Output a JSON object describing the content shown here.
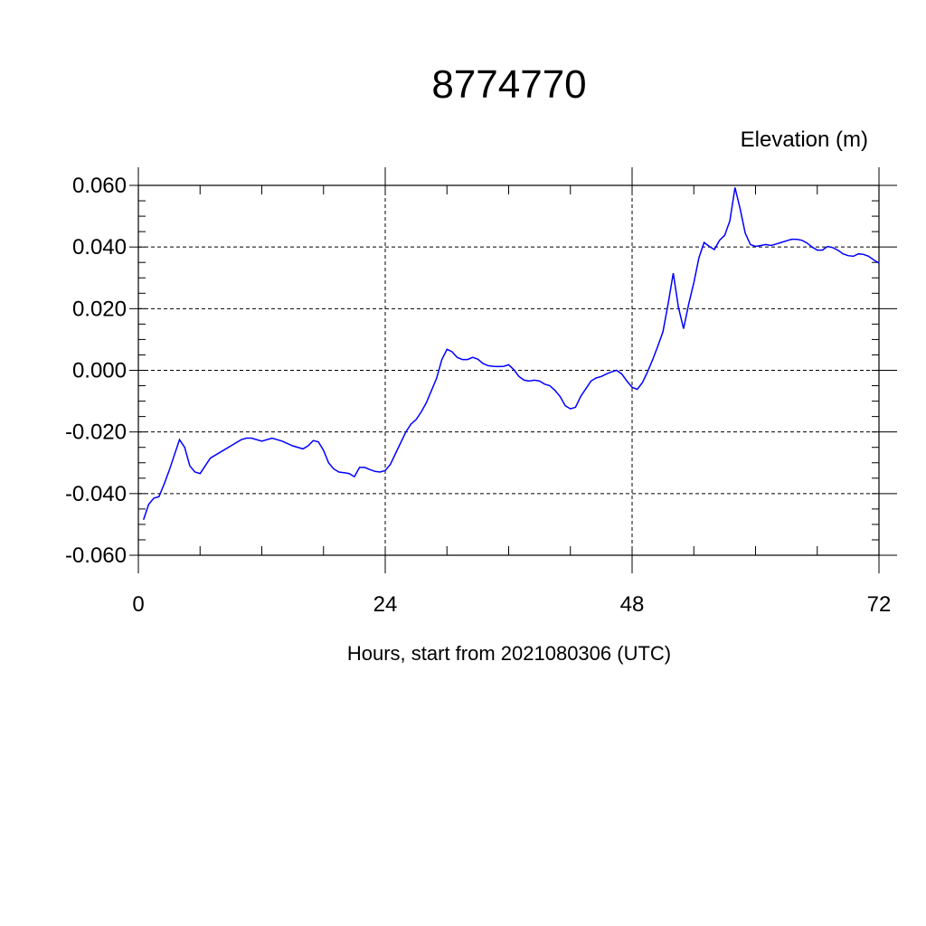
{
  "chart_data": {
    "type": "line",
    "title": "8774770",
    "ylabel": "Elevation (m)",
    "xlabel": "Hours, start from 2021080306 (UTC)",
    "xlim": [
      0,
      72
    ],
    "ylim": [
      -0.06,
      0.06
    ],
    "xticks": [
      0,
      24,
      48,
      72
    ],
    "xtick_labels": [
      "0",
      "24",
      "48",
      "72"
    ],
    "yticks": [
      0.06,
      0.04,
      0.02,
      0.0,
      -0.02,
      -0.04,
      -0.06
    ],
    "ytick_labels": [
      "0.060",
      "0.040",
      "0.020",
      "0.000",
      "-0.020",
      "-0.040",
      "-0.060"
    ],
    "grid": true,
    "line_color": "#0000ff",
    "series": [
      {
        "x": [
          0.5,
          1,
          1.5,
          2,
          2.5,
          3,
          3.5,
          4,
          4.5,
          5,
          5.5,
          6,
          6.5,
          7,
          8,
          9,
          10,
          10.5,
          11,
          12,
          13,
          14,
          15,
          16,
          16.5,
          17,
          17.5,
          18,
          18.5,
          19,
          19.5,
          20,
          20.5,
          21,
          21.5,
          22,
          22.5,
          23,
          23.5,
          24,
          24.5,
          25,
          26,
          26.5,
          27,
          27.5,
          28,
          28.5,
          29,
          29.5,
          30,
          30.5,
          31,
          31.5,
          32,
          32.5,
          33,
          33.5,
          34,
          34.5,
          35,
          35.5,
          36,
          36.5,
          37,
          37.5,
          38,
          38.5,
          39,
          39.5,
          40,
          40.5,
          41,
          41.5,
          42,
          42.5,
          43,
          43.5,
          44,
          44.5,
          45,
          45.5,
          46,
          46.5,
          47,
          47.5,
          48,
          48.5,
          49,
          49.5,
          50,
          50.5,
          51,
          51.5,
          52,
          52.5,
          53,
          53.5,
          54,
          54.5,
          55,
          55.5,
          56,
          56.5,
          57,
          57.5,
          58,
          58.5,
          59,
          59.5,
          60,
          60.5,
          61,
          61.5,
          62,
          62.5,
          63,
          63.5,
          64,
          64.5,
          65,
          65.5,
          66,
          66.5,
          67,
          67.5,
          68,
          68.5,
          69,
          69.5,
          70,
          70.5,
          71,
          71.5,
          72
        ],
        "values": [
          -0.0485,
          -0.0435,
          -0.0415,
          -0.041,
          -0.037,
          -0.0325,
          -0.0275,
          -0.0225,
          -0.025,
          -0.031,
          -0.033,
          -0.0335,
          -0.031,
          -0.0285,
          -0.0265,
          -0.0245,
          -0.0225,
          -0.022,
          -0.022,
          -0.023,
          -0.022,
          -0.023,
          -0.0245,
          -0.0255,
          -0.0245,
          -0.0228,
          -0.0232,
          -0.026,
          -0.03,
          -0.032,
          -0.033,
          -0.0332,
          -0.0335,
          -0.0345,
          -0.0315,
          -0.0315,
          -0.0322,
          -0.0328,
          -0.033,
          -0.0325,
          -0.0305,
          -0.027,
          -0.02,
          -0.0175,
          -0.016,
          -0.0135,
          -0.0105,
          -0.0065,
          -0.0025,
          0.0035,
          0.0068,
          0.006,
          0.0042,
          0.0035,
          0.0035,
          0.0042,
          0.0036,
          0.0022,
          0.0015,
          0.0013,
          0.0012,
          0.0013,
          0.0018,
          0.0002,
          -0.002,
          -0.0032,
          -0.0035,
          -0.0032,
          -0.0035,
          -0.0045,
          -0.005,
          -0.0065,
          -0.0085,
          -0.0115,
          -0.0125,
          -0.012,
          -0.0085,
          -0.006,
          -0.0035,
          -0.0025,
          -0.002,
          -0.0012,
          -0.0005,
          0.0,
          -0.0012,
          -0.0035,
          -0.0055,
          -0.0062,
          -0.004,
          -0.0005,
          0.0035,
          0.0078,
          0.0125,
          0.0215,
          0.0315,
          0.0205,
          0.0135,
          0.0215,
          0.0285,
          0.0365,
          0.0415,
          0.0402,
          0.0392,
          0.0422,
          0.0438,
          0.0485,
          0.0593,
          0.0525,
          0.0445,
          0.0408,
          0.0402,
          0.0405,
          0.0408,
          0.0405,
          0.041,
          0.0415,
          0.042,
          0.0425,
          0.0425,
          0.0422,
          0.0413,
          0.04,
          0.039,
          0.039,
          0.0402,
          0.0398,
          0.039,
          0.0378,
          0.0372,
          0.037,
          0.0378,
          0.0376,
          0.037,
          0.0358,
          0.0348
        ]
      }
    ]
  }
}
